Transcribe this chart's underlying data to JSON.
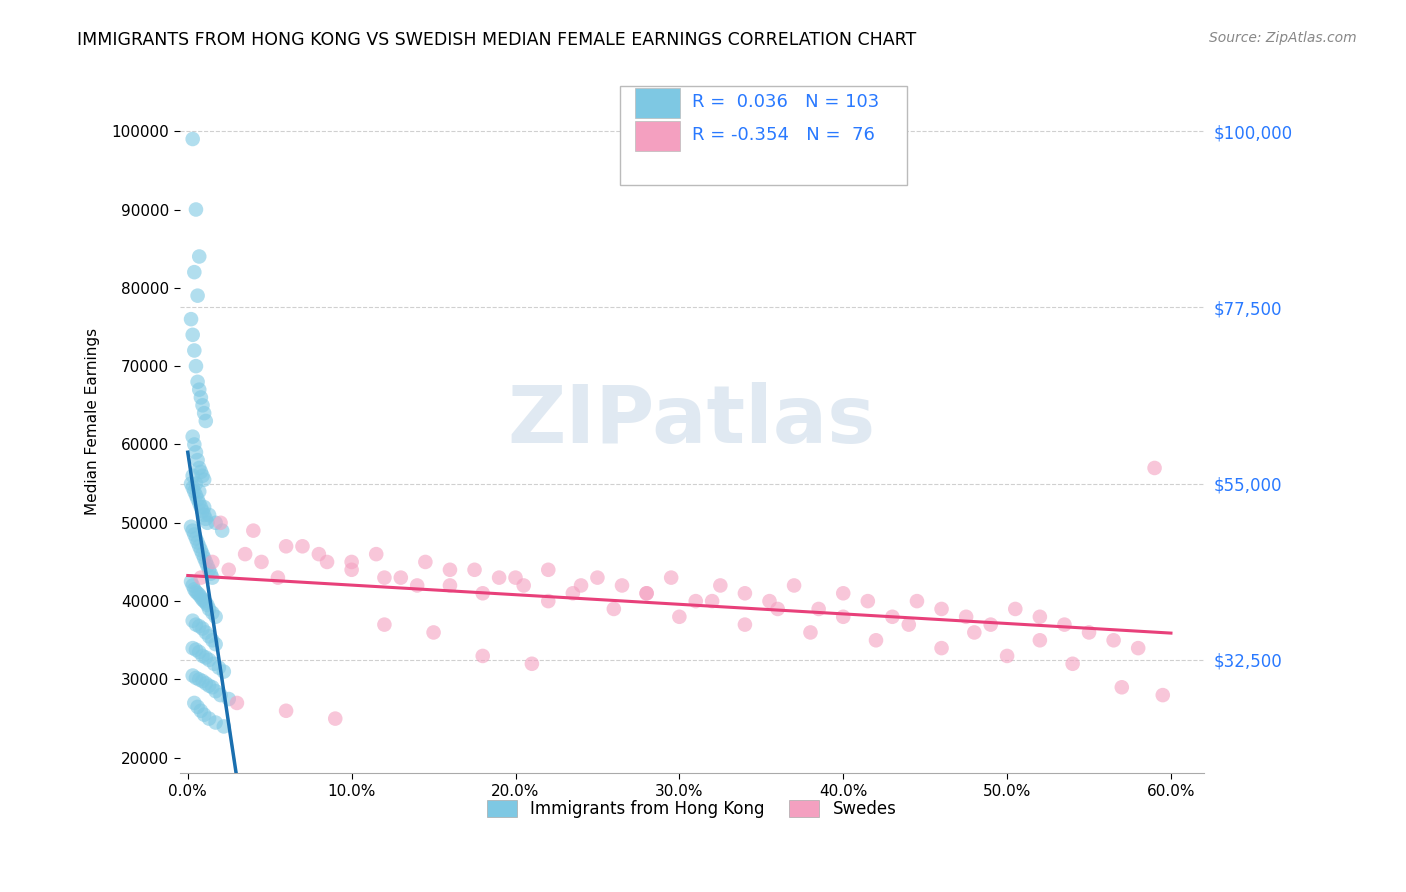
{
  "title": "IMMIGRANTS FROM HONG KONG VS SWEDISH MEDIAN FEMALE EARNINGS CORRELATION CHART",
  "source": "Source: ZipAtlas.com",
  "ylabel": "Median Female Earnings",
  "xlabel_ticks": [
    "0.0%",
    "10.0%",
    "20.0%",
    "30.0%",
    "40.0%",
    "50.0%",
    "60.0%"
  ],
  "xlabel_vals": [
    0.0,
    10.0,
    20.0,
    30.0,
    40.0,
    50.0,
    60.0
  ],
  "ytick_labels": [
    "$32,500",
    "$55,000",
    "$77,500",
    "$100,000"
  ],
  "ytick_vals": [
    32500,
    55000,
    77500,
    100000
  ],
  "ymin": 18000,
  "ymax": 108000,
  "xmin": -0.5,
  "xmax": 62.0,
  "blue_color": "#7ec8e3",
  "blue_line_color": "#1a6faf",
  "blue_dash_color": "#a0c8e8",
  "pink_color": "#f4a0c0",
  "pink_line_color": "#e8407a",
  "watermark": "ZIPatlas",
  "legend_blue_label": "Immigrants from Hong Kong",
  "legend_pink_label": "Swedes",
  "blue_scatter_x": [
    0.3,
    0.5,
    0.7,
    0.4,
    0.6,
    0.2,
    0.3,
    0.4,
    0.5,
    0.6,
    0.7,
    0.8,
    0.9,
    1.0,
    1.1,
    0.3,
    0.4,
    0.5,
    0.6,
    0.7,
    0.8,
    0.9,
    1.0,
    0.2,
    0.3,
    0.4,
    0.5,
    0.6,
    0.7,
    0.8,
    0.9,
    1.0,
    1.1,
    1.2,
    0.2,
    0.3,
    0.4,
    0.5,
    0.6,
    0.7,
    0.8,
    0.9,
    1.0,
    1.1,
    1.2,
    1.3,
    1.4,
    1.5,
    0.2,
    0.3,
    0.4,
    0.5,
    0.6,
    0.7,
    0.8,
    0.9,
    1.0,
    1.1,
    1.2,
    1.3,
    1.5,
    1.7,
    0.3,
    0.5,
    0.7,
    0.9,
    1.1,
    1.3,
    1.5,
    1.7,
    0.3,
    0.5,
    0.7,
    0.9,
    1.1,
    1.3,
    1.6,
    1.9,
    2.2,
    0.3,
    0.5,
    0.7,
    0.9,
    1.1,
    1.3,
    1.5,
    1.7,
    2.0,
    2.5,
    0.3,
    0.5,
    0.7,
    1.0,
    1.3,
    1.7,
    2.1,
    0.4,
    0.6,
    0.8,
    1.0,
    1.3,
    1.7,
    2.2
  ],
  "blue_scatter_y": [
    99000,
    90000,
    84000,
    82000,
    79000,
    76000,
    74000,
    72000,
    70000,
    68000,
    67000,
    66000,
    65000,
    64000,
    63000,
    61000,
    60000,
    59000,
    58000,
    57000,
    56500,
    56000,
    55500,
    55000,
    54500,
    54000,
    53500,
    53000,
    52500,
    52000,
    51500,
    51000,
    50500,
    50000,
    49500,
    49000,
    48500,
    48000,
    47500,
    47000,
    46500,
    46000,
    45500,
    45000,
    44500,
    44000,
    43500,
    43000,
    42500,
    42000,
    41500,
    41200,
    41000,
    40800,
    40500,
    40200,
    40000,
    39800,
    39500,
    39000,
    38500,
    38000,
    37500,
    37000,
    36800,
    36500,
    36000,
    35500,
    35000,
    34500,
    34000,
    33800,
    33500,
    33000,
    32800,
    32500,
    32000,
    31500,
    31000,
    30500,
    30200,
    30000,
    29800,
    29500,
    29200,
    29000,
    28500,
    28000,
    27500,
    56000,
    55000,
    54000,
    52000,
    51000,
    50000,
    49000,
    27000,
    26500,
    26000,
    25500,
    25000,
    24500,
    24000
  ],
  "pink_scatter_x": [
    0.8,
    1.5,
    2.5,
    3.5,
    4.5,
    5.5,
    7.0,
    8.5,
    10.0,
    11.5,
    13.0,
    14.5,
    16.0,
    17.5,
    19.0,
    20.5,
    22.0,
    23.5,
    25.0,
    26.5,
    28.0,
    29.5,
    31.0,
    32.5,
    34.0,
    35.5,
    37.0,
    38.5,
    40.0,
    41.5,
    43.0,
    44.5,
    46.0,
    47.5,
    49.0,
    50.5,
    52.0,
    53.5,
    55.0,
    56.5,
    58.0,
    59.0,
    2.0,
    4.0,
    6.0,
    8.0,
    10.0,
    12.0,
    14.0,
    16.0,
    18.0,
    20.0,
    22.0,
    24.0,
    26.0,
    28.0,
    30.0,
    32.0,
    34.0,
    36.0,
    38.0,
    40.0,
    42.0,
    44.0,
    46.0,
    48.0,
    50.0,
    52.0,
    54.0,
    57.0,
    59.5,
    3.0,
    6.0,
    9.0,
    12.0,
    15.0,
    18.0,
    21.0
  ],
  "pink_scatter_y": [
    43000,
    45000,
    44000,
    46000,
    45000,
    43000,
    47000,
    45000,
    44000,
    46000,
    43000,
    45000,
    42000,
    44000,
    43000,
    42000,
    44000,
    41000,
    43000,
    42000,
    41000,
    43000,
    40000,
    42000,
    41000,
    40000,
    42000,
    39000,
    41000,
    40000,
    38000,
    40000,
    39000,
    38000,
    37000,
    39000,
    38000,
    37000,
    36000,
    35000,
    34000,
    57000,
    50000,
    49000,
    47000,
    46000,
    45000,
    43000,
    42000,
    44000,
    41000,
    43000,
    40000,
    42000,
    39000,
    41000,
    38000,
    40000,
    37000,
    39000,
    36000,
    38000,
    35000,
    37000,
    34000,
    36000,
    33000,
    35000,
    32000,
    29000,
    28000,
    27000,
    26000,
    25000,
    37000,
    36000,
    33000,
    32000
  ]
}
